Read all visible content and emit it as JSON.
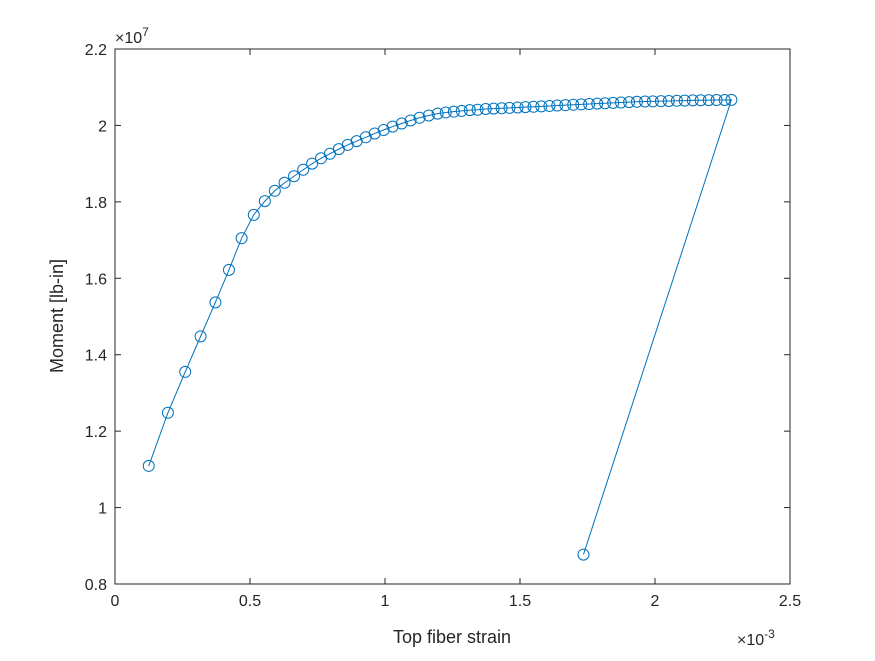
{
  "chart_data": {
    "type": "line",
    "title": "",
    "xlabel": "Top fiber strain",
    "ylabel": "Moment [lb-in]",
    "xlim": [
      0,
      0.0025
    ],
    "ylim": [
      8000000,
      22000000
    ],
    "x_ticks": [
      0,
      0.0005,
      0.001,
      0.0015,
      0.002,
      0.0025
    ],
    "x_tick_labels": [
      "0",
      "0.5",
      "1",
      "1.5",
      "2",
      "2.5"
    ],
    "y_ticks": [
      8000000,
      10000000,
      12000000,
      14000000,
      16000000,
      18000000,
      20000000,
      22000000
    ],
    "y_tick_labels": [
      "0.8",
      "1",
      "1.2",
      "1.4",
      "1.6",
      "1.8",
      "2",
      "2.2"
    ],
    "x_exponent": {
      "base": "×10",
      "power": "-3"
    },
    "y_exponent": {
      "base": "×10",
      "power": "7"
    },
    "grid": false,
    "legend": "none",
    "marker": "circle-open",
    "color": "#0072BD",
    "series": [
      {
        "x": [
          0.000125,
          0.000196,
          0.00026,
          0.000317,
          0.000372,
          0.000422,
          0.000469,
          0.000514,
          0.000555,
          0.000592,
          0.000628,
          0.000663,
          0.000697,
          0.00073,
          0.000763,
          0.000796,
          0.000829,
          0.000862,
          0.000895,
          0.000929,
          0.000962,
          0.000995,
          0.001028,
          0.001062,
          0.001095,
          0.001128,
          0.001162,
          0.001195,
          0.001225,
          0.001255,
          0.001284,
          0.001314,
          0.001343,
          0.001373,
          0.001402,
          0.001432,
          0.001461,
          0.001491,
          0.00152,
          0.00155,
          0.001579,
          0.001609,
          0.001638,
          0.001668,
          0.001697,
          0.001727,
          0.001756,
          0.001786,
          0.001815,
          0.001845,
          0.001874,
          0.001904,
          0.001933,
          0.001963,
          0.001992,
          0.002022,
          0.002051,
          0.002081,
          0.00211,
          0.00214,
          0.002169,
          0.002199,
          0.002228,
          0.002258,
          0.002283,
          0.001735
        ],
        "y": [
          11090000,
          12480000,
          13550000,
          14480000,
          15370000,
          16220000,
          17050000,
          17660000,
          18020000,
          18290000,
          18500000,
          18670000,
          18840000,
          19000000,
          19140000,
          19260000,
          19380000,
          19490000,
          19590000,
          19690000,
          19790000,
          19880000,
          19970000,
          20050000,
          20130000,
          20200000,
          20260000,
          20310000,
          20340000,
          20360000,
          20380000,
          20400000,
          20410000,
          20430000,
          20440000,
          20450000,
          20460000,
          20470000,
          20480000,
          20490000,
          20500000,
          20510000,
          20520000,
          20530000,
          20540000,
          20550000,
          20560000,
          20570000,
          20580000,
          20590000,
          20600000,
          20610000,
          20620000,
          20625000,
          20630000,
          20635000,
          20640000,
          20645000,
          20650000,
          20655000,
          20660000,
          20662000,
          20664000,
          20666000,
          20668000,
          8770000
        ]
      }
    ]
  }
}
